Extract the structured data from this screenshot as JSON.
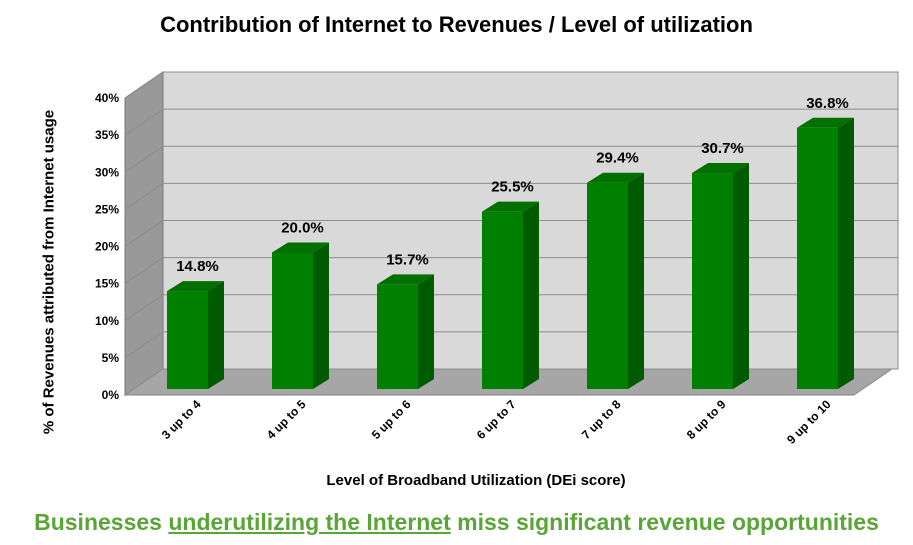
{
  "chart_data": {
    "type": "bar",
    "title": "Contribution of Internet to Revenues / Level of utilization",
    "xlabel": "Level of Broadband Utilization (DEi score)",
    "ylabel": "% of Revenues attributed from Internet usage",
    "categories": [
      "3 up to 4",
      "4 up to 5",
      "5 up to 6",
      "6 up to 7",
      "7 up to 8",
      "8 up to 9",
      "9 up to 10"
    ],
    "values": [
      14.8,
      20.0,
      15.7,
      25.5,
      29.4,
      30.7,
      36.8
    ],
    "data_labels": [
      "14.8%",
      "20.0%",
      "15.7%",
      "25.5%",
      "29.4%",
      "30.7%",
      "36.8%"
    ],
    "y_ticks": [
      "0%",
      "5%",
      "10%",
      "15%",
      "20%",
      "25%",
      "30%",
      "35%",
      "40%"
    ],
    "ylim": [
      0,
      40
    ],
    "grid": true,
    "bar_color": "#008000",
    "wall_color": "#d9d9d9"
  },
  "headline": {
    "before": "Businesses ",
    "underlined": "underutilizing the Internet",
    "after": " miss significant revenue opportunities",
    "color": "#5aa537"
  }
}
